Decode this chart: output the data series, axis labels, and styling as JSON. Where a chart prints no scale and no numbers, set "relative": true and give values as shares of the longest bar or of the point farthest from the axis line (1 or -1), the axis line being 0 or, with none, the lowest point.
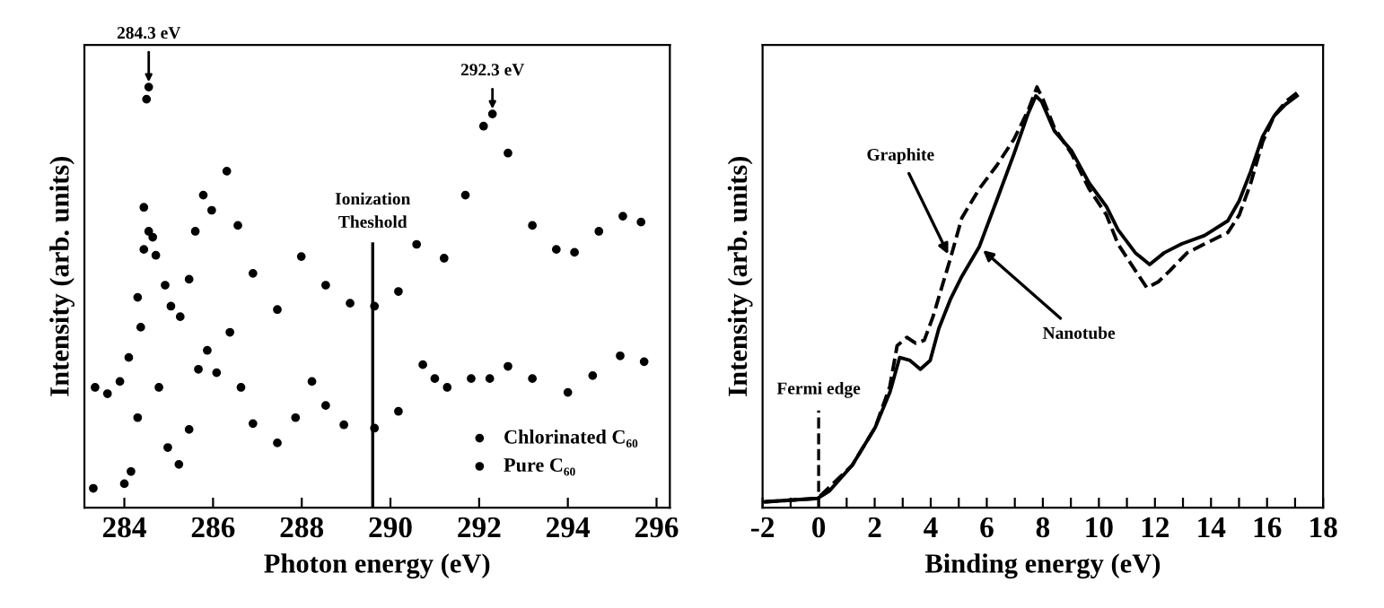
{
  "chart_data": [
    {
      "type": "scatter",
      "xlabel": "Photon energy (eV)",
      "ylabel": "Intensity (arb. units)",
      "relative": true,
      "xlim": [
        283.1,
        296.3
      ],
      "xticks": [
        284,
        286,
        288,
        290,
        292,
        294,
        296
      ],
      "tick_labels": "x",
      "marker": "circle",
      "legend": "bottom right",
      "series": [
        {
          "name": "Chlorinated C₆₀",
          "color": "#000000",
          "x": [
            283.34,
            283.62,
            283.9,
            284.1,
            284.3,
            284.44,
            284.55,
            284.71,
            284.92,
            285.05,
            285.26,
            285.46,
            285.6,
            285.78,
            285.97,
            286.31,
            286.56,
            286.9,
            287.45,
            287.99,
            288.54,
            289.09,
            289.64,
            290.18,
            290.59,
            291.21,
            291.69,
            292.1,
            292.3,
            292.65,
            293.2,
            293.74,
            294.15,
            294.7,
            295.24,
            295.65
          ],
          "values": [
            0.286,
            0.271,
            0.3,
            0.357,
            0.5,
            0.614,
            0.657,
            0.6,
            0.529,
            0.479,
            0.454,
            0.543,
            0.657,
            0.743,
            0.707,
            0.8,
            0.671,
            0.557,
            0.471,
            0.597,
            0.529,
            0.486,
            0.479,
            0.514,
            0.626,
            0.593,
            0.743,
            0.907,
            0.936,
            0.843,
            0.671,
            0.614,
            0.607,
            0.657,
            0.693,
            0.679
          ]
        },
        {
          "name": "Pure C₆₀",
          "color": "#000000",
          "x": [
            283.3,
            284.0,
            284.15,
            284.3,
            284.37,
            284.44,
            284.5,
            284.55,
            284.64,
            284.78,
            284.98,
            285.23,
            285.46,
            285.67,
            285.87,
            286.08,
            286.38,
            286.63,
            286.9,
            287.45,
            287.86,
            288.23,
            288.54,
            288.95,
            289.64,
            290.18,
            290.73,
            291.0,
            291.28,
            291.82,
            292.24,
            292.65,
            293.2,
            294.0,
            294.56,
            295.18,
            295.72
          ],
          "values": [
            0.046,
            0.057,
            0.086,
            0.214,
            0.429,
            0.714,
            0.971,
            1.0,
            0.643,
            0.286,
            0.143,
            0.103,
            0.186,
            0.329,
            0.374,
            0.321,
            0.417,
            0.286,
            0.2,
            0.154,
            0.214,
            0.3,
            0.243,
            0.197,
            0.189,
            0.229,
            0.34,
            0.307,
            0.286,
            0.307,
            0.307,
            0.336,
            0.307,
            0.274,
            0.314,
            0.361,
            0.347
          ]
        }
      ],
      "ref_lines": [
        {
          "axis": "x",
          "value": 289.6,
          "label": "Ionization\nTheshold",
          "line_style": "solid"
        }
      ],
      "annotations": [
        {
          "text": "284.3 eV",
          "x": 284.55,
          "y": 1.0
        },
        {
          "text": "292.3 eV",
          "x": 292.3,
          "y": 0.936
        }
      ]
    },
    {
      "type": "line",
      "xlabel": "Binding energy (eV)",
      "ylabel": "Intensity (arb. units)",
      "relative": true,
      "xlim": [
        -2,
        18
      ],
      "xticks": [
        -2,
        {
          "value": -1,
          "label": null
        },
        0,
        {
          "value": 1,
          "label": null
        },
        2,
        {
          "value": 3,
          "label": null
        },
        4,
        {
          "value": 5,
          "label": null
        },
        6,
        {
          "value": 7,
          "label": null
        },
        8,
        {
          "value": 9,
          "label": null
        },
        10,
        {
          "value": 11,
          "label": null
        },
        12,
        {
          "value": 13,
          "label": null
        },
        14,
        {
          "value": 15,
          "label": null
        },
        16,
        {
          "value": 17,
          "label": null
        },
        18
      ],
      "tick_labels": "x",
      "series": [
        {
          "color": "#000000",
          "line_style": "solid",
          "x": [
            -1.9,
            -0.04,
            0.37,
            1.2,
            2.02,
            2.54,
            2.89,
            3.26,
            3.63,
            3.98,
            4.29,
            4.7,
            5.11,
            5.73,
            6.35,
            6.97,
            7.48,
            7.75,
            7.96,
            8.41,
            9.03,
            9.65,
            10.27,
            10.68,
            11.3,
            11.81,
            12.33,
            12.95,
            13.77,
            14.6,
            15.01,
            15.42,
            15.84,
            16.25,
            16.66,
            17.07
          ],
          "values": [
            0.014,
            0.022,
            0.039,
            0.101,
            0.191,
            0.274,
            0.357,
            0.35,
            0.329,
            0.35,
            0.426,
            0.495,
            0.55,
            0.62,
            0.73,
            0.841,
            0.938,
            0.979,
            0.965,
            0.896,
            0.848,
            0.772,
            0.716,
            0.661,
            0.606,
            0.578,
            0.606,
            0.627,
            0.647,
            0.682,
            0.73,
            0.8,
            0.882,
            0.931,
            0.959,
            0.979
          ]
        },
        {
          "color": "#000000",
          "line_style": "dashed",
          "x": [
            -1.9,
            -0.04,
            1.2,
            2.02,
            2.54,
            2.8,
            3.15,
            3.46,
            3.77,
            4.08,
            4.39,
            4.7,
            5.11,
            5.73,
            6.35,
            6.97,
            7.48,
            7.79,
            8.0,
            8.41,
            9.03,
            9.65,
            10.27,
            10.68,
            11.3,
            11.71,
            12.12,
            12.54,
            13.15,
            13.77,
            14.6,
            15.01,
            15.42,
            15.84,
            16.25,
            16.66,
            17.07
          ],
          "values": [
            0.014,
            0.022,
            0.101,
            0.191,
            0.288,
            0.385,
            0.405,
            0.391,
            0.398,
            0.454,
            0.523,
            0.592,
            0.689,
            0.758,
            0.813,
            0.876,
            0.945,
            1.0,
            0.972,
            0.903,
            0.841,
            0.758,
            0.696,
            0.627,
            0.564,
            0.523,
            0.537,
            0.564,
            0.606,
            0.627,
            0.654,
            0.696,
            0.772,
            0.869,
            0.931,
            0.965,
            0.986
          ]
        }
      ],
      "ref_lines": [
        {
          "axis": "x",
          "value": 0,
          "label": "Fermi edge",
          "line_style": "dashed"
        }
      ],
      "annotations": [
        {
          "text": "Graphite",
          "x": 4.7,
          "y": 0.592
        },
        {
          "text": "Nanotube",
          "x": 5.73,
          "y": 0.62
        }
      ]
    }
  ]
}
